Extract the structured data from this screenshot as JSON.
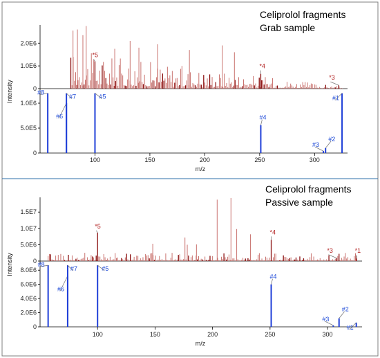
{
  "chart_data": [
    {
      "type": "bar",
      "title": "Celiprolol fragments",
      "subtitle": "Grab sample",
      "ylabel": "Intensity",
      "xlabel": "m/z",
      "x_ticks": [
        100,
        150,
        200,
        250,
        300
      ],
      "xlim": [
        50,
        330
      ],
      "sample": {
        "ylim": [
          0,
          2800000
        ],
        "y_ticks": [
          0,
          1000000,
          2000000
        ],
        "y_tick_labels": [
          "0",
          "1.0E6",
          "2.0E6"
        ],
        "peaks": [
          {
            "mz": 80,
            "intensity": 2550000
          },
          {
            "mz": 84,
            "intensity": 2600000
          },
          {
            "mz": 89,
            "intensity": 2350000
          },
          {
            "mz": 92,
            "intensity": 2750000
          },
          {
            "mz": 100,
            "intensity": 1200000,
            "label": "*5"
          },
          {
            "mz": 118,
            "intensity": 1750000
          },
          {
            "mz": 132,
            "intensity": 2100000
          },
          {
            "mz": 140,
            "intensity": 1800000
          },
          {
            "mz": 157,
            "intensity": 1950000
          },
          {
            "mz": 186,
            "intensity": 1700000
          },
          {
            "mz": 216,
            "intensity": 1900000
          },
          {
            "mz": 227,
            "intensity": 1600000
          },
          {
            "mz": 251,
            "intensity": 650000,
            "label": "*4"
          },
          {
            "mz": 322,
            "intensity": 150000,
            "label": "*3"
          }
        ]
      },
      "reference": {
        "ylim": [
          0,
          1250000
        ],
        "y_ticks": [
          0,
          500000,
          1000000
        ],
        "y_tick_labels": [
          "0",
          "5.0E5",
          "1.0E6"
        ],
        "peaks": [
          {
            "mz": 57,
            "intensity": 1200000,
            "label": "#8"
          },
          {
            "mz": 74,
            "intensity": 1000000,
            "label": "#6"
          },
          {
            "mz": 74,
            "intensity": 1200000,
            "label": "#7"
          },
          {
            "mz": 100,
            "intensity": 1200000,
            "label": "#5"
          },
          {
            "mz": 251,
            "intensity": 560000,
            "label": "#4"
          },
          {
            "mz": 308,
            "intensity": 40000,
            "label": "#3"
          },
          {
            "mz": 310,
            "intensity": 100000,
            "label": "#2"
          },
          {
            "mz": 325,
            "intensity": 1200000,
            "label": "#1"
          }
        ]
      }
    },
    {
      "type": "bar",
      "title": "Celiprolol fragments",
      "subtitle": "Passive sample",
      "ylabel": "Intensity",
      "xlabel": "m/z",
      "x_ticks": [
        100,
        150,
        200,
        250,
        300
      ],
      "xlim": [
        50,
        330
      ],
      "sample": {
        "ylim": [
          0,
          19500000
        ],
        "y_ticks": [
          0,
          5000000,
          10000000,
          15000000
        ],
        "y_tick_labels": [
          "0",
          "5.0E6",
          "1.0E7",
          "1.5E7"
        ],
        "peaks": [
          {
            "mz": 100,
            "intensity": 8700000,
            "label": "*5"
          },
          {
            "mz": 148,
            "intensity": 5300000
          },
          {
            "mz": 176,
            "intensity": 7200000
          },
          {
            "mz": 178,
            "intensity": 5000000
          },
          {
            "mz": 186,
            "intensity": 5100000
          },
          {
            "mz": 204,
            "intensity": 18800000
          },
          {
            "mz": 216,
            "intensity": 19300000
          },
          {
            "mz": 221,
            "intensity": 9800000
          },
          {
            "mz": 233,
            "intensity": 8200000
          },
          {
            "mz": 251,
            "intensity": 6500000,
            "label": "*4"
          },
          {
            "mz": 308,
            "intensity": 900000,
            "label": "*3"
          },
          {
            "mz": 325,
            "intensity": 800000,
            "label": "*1"
          }
        ]
      },
      "reference": {
        "ylim": [
          0,
          8900000
        ],
        "y_ticks": [
          0,
          2000000,
          4000000,
          6000000,
          8000000
        ],
        "y_tick_labels": [
          "0",
          "2.0E6",
          "4.0E6",
          "6.0E6",
          "8.0E6"
        ],
        "peaks": [
          {
            "mz": 57,
            "intensity": 8700000,
            "label": "#8"
          },
          {
            "mz": 74,
            "intensity": 7200000,
            "label": "#6"
          },
          {
            "mz": 74,
            "intensity": 8700000,
            "label": "#7"
          },
          {
            "mz": 100,
            "intensity": 8700000,
            "label": "#5"
          },
          {
            "mz": 251,
            "intensity": 6000000,
            "label": "#4"
          },
          {
            "mz": 305,
            "intensity": 200000,
            "label": "#3"
          },
          {
            "mz": 310,
            "intensity": 1200000,
            "label": "#2"
          },
          {
            "mz": 325,
            "intensity": 600000,
            "label": "#1"
          }
        ]
      }
    }
  ],
  "colors": {
    "sample_bar": "#c9726e",
    "sample_bar_dark": "#8b1010",
    "reference_bar": "#1f3fd8",
    "divider": "#2e6fa8"
  }
}
